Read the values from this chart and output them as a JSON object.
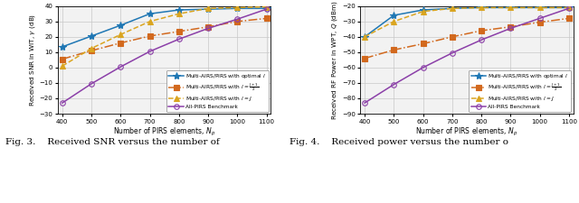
{
  "x": [
    400,
    500,
    600,
    700,
    800,
    900,
    1000,
    1100
  ],
  "fig3": {
    "ylabel": "Received SNR in WIT, $\\gamma$ (dB)",
    "xlabel": "Number of PIRS elements, $N_p$",
    "ylim": [
      -30,
      40
    ],
    "yticks": [
      -30,
      -20,
      -10,
      0,
      10,
      20,
      30,
      40
    ],
    "series": {
      "optimal": [
        13.5,
        20.5,
        27.5,
        35.0,
        37.5,
        38.0,
        38.5,
        38.5
      ],
      "mid": [
        5.5,
        11.0,
        16.0,
        20.5,
        23.5,
        26.5,
        30.0,
        32.0
      ],
      "J": [
        1.0,
        12.5,
        21.5,
        30.0,
        35.0,
        38.5,
        39.0,
        39.5
      ],
      "allpirs": [
        -23.0,
        -10.5,
        0.5,
        10.5,
        18.5,
        25.5,
        31.5,
        38.0
      ]
    }
  },
  "fig4": {
    "ylabel": "Received RF Power in WPT, $Q$ (dBm)",
    "xlabel": "Number of PIRS elements, $N_p$",
    "ylim": [
      -90,
      -20
    ],
    "yticks": [
      -90,
      -80,
      -70,
      -60,
      -50,
      -40,
      -30,
      -20
    ],
    "series": {
      "optimal": [
        -40.0,
        -26.0,
        -22.5,
        -21.5,
        -21.0,
        -21.0,
        -21.0,
        -21.0
      ],
      "mid": [
        -54.0,
        -48.5,
        -44.5,
        -40.0,
        -36.0,
        -33.5,
        -30.5,
        -28.0
      ],
      "J": [
        -40.0,
        -30.0,
        -23.5,
        -21.5,
        -21.0,
        -21.0,
        -21.0,
        -21.0
      ],
      "allpirs": [
        -83.0,
        -71.0,
        -60.0,
        -50.5,
        -42.0,
        -34.5,
        -28.0,
        -21.5
      ]
    }
  },
  "legend_labels": [
    "Multi-AIRS/PIRS with optimal $l$",
    "Multi-AIRS/PIRS with $l = \\frac{J+1}{2}$",
    "Multi-AIRS/PIRS with $l = J$",
    "All-PIRS Benchmark"
  ],
  "colors": {
    "optimal": "#1f77b4",
    "mid": "#d2691e",
    "J": "#daa520",
    "allpirs": "#8b3fa8"
  },
  "linestyles": {
    "optimal": "-",
    "mid": "-.",
    "J": "--",
    "allpirs": "-"
  },
  "markers": {
    "optimal": "*",
    "mid": "s",
    "J": "^",
    "allpirs": "o"
  },
  "markersizes": {
    "optimal": 6,
    "mid": 4,
    "J": 5,
    "allpirs": 4
  },
  "caption3": "Fig. 3.    Received SNR versus the number of",
  "caption4": "Fig. 4.    Received power versus the number o",
  "background_color": "#ffffff",
  "grid_color": "#c8c8c8",
  "legend_loc3": "lower right",
  "legend_loc4": "lower right"
}
